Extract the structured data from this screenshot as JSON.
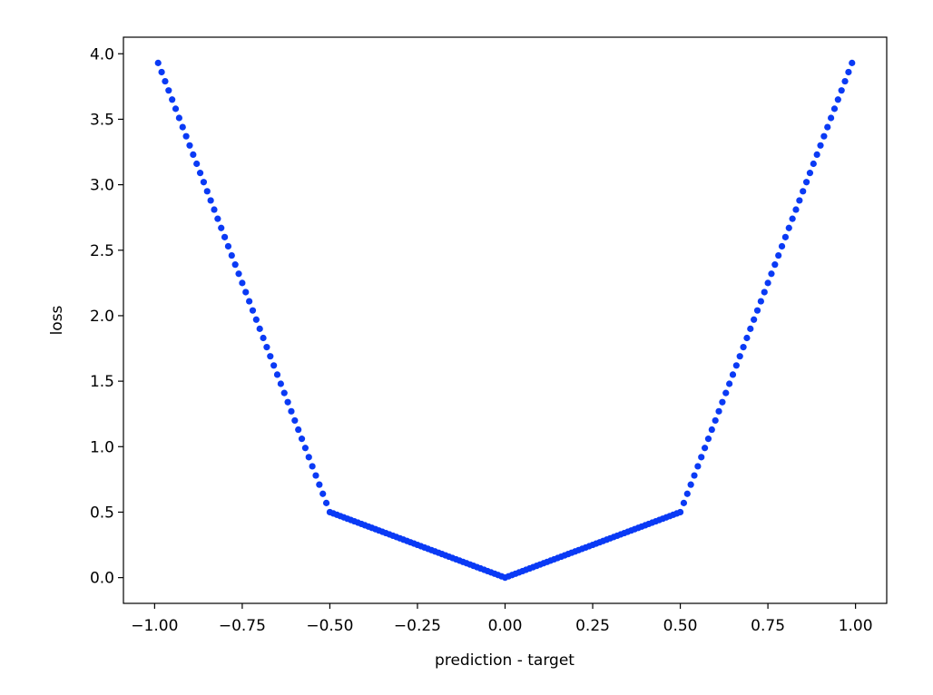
{
  "chart_data": {
    "type": "scatter",
    "xlabel": "prediction - target",
    "ylabel": "loss",
    "color": "#0a3af5",
    "x": [
      -0.99,
      -0.98,
      -0.97,
      -0.96,
      -0.95,
      -0.94,
      -0.93,
      -0.92,
      -0.91,
      -0.9,
      -0.89,
      -0.88,
      -0.87,
      -0.86,
      -0.85,
      -0.84,
      -0.83,
      -0.82,
      -0.81,
      -0.8,
      -0.79,
      -0.78,
      -0.77,
      -0.76,
      -0.75,
      -0.74,
      -0.73,
      -0.72,
      -0.71,
      -0.7,
      -0.69,
      -0.68,
      -0.67,
      -0.66,
      -0.65,
      -0.64,
      -0.63,
      -0.62,
      -0.61,
      -0.6,
      -0.59,
      -0.58,
      -0.57,
      -0.56,
      -0.55,
      -0.54,
      -0.53,
      -0.52,
      -0.51,
      -0.5,
      -0.49,
      -0.48,
      -0.47,
      -0.46,
      -0.45,
      -0.44,
      -0.43,
      -0.42,
      -0.41,
      -0.4,
      -0.39,
      -0.38,
      -0.37,
      -0.36,
      -0.35,
      -0.34,
      -0.33,
      -0.32,
      -0.31,
      -0.3,
      -0.29,
      -0.28,
      -0.27,
      -0.26,
      -0.25,
      -0.24,
      -0.23,
      -0.22,
      -0.21,
      -0.2,
      -0.19,
      -0.18,
      -0.17,
      -0.16,
      -0.15,
      -0.14,
      -0.13,
      -0.12,
      -0.11,
      -0.1,
      -0.09,
      -0.08,
      -0.07,
      -0.06,
      -0.05,
      -0.04,
      -0.03,
      -0.02,
      -0.01,
      0,
      0.01,
      0.02,
      0.03,
      0.04,
      0.05,
      0.06,
      0.07,
      0.08,
      0.09,
      0.1,
      0.11,
      0.12,
      0.13,
      0.14,
      0.15,
      0.16,
      0.17,
      0.18,
      0.19,
      0.2,
      0.21,
      0.22,
      0.23,
      0.24,
      0.25,
      0.26,
      0.27,
      0.28,
      0.29,
      0.3,
      0.31,
      0.32,
      0.33,
      0.34,
      0.35,
      0.36,
      0.37,
      0.38,
      0.39,
      0.4,
      0.41,
      0.42,
      0.43,
      0.44,
      0.45,
      0.46,
      0.47,
      0.48,
      0.49,
      0.5,
      0.51,
      0.52,
      0.53,
      0.54,
      0.55,
      0.56,
      0.57,
      0.58,
      0.59,
      0.6,
      0.61,
      0.62,
      0.63,
      0.64,
      0.65,
      0.66,
      0.67,
      0.68,
      0.69,
      0.7,
      0.71,
      0.72,
      0.73,
      0.74,
      0.75,
      0.76,
      0.77,
      0.78,
      0.79,
      0.8,
      0.81,
      0.82,
      0.83,
      0.84,
      0.85,
      0.86,
      0.87,
      0.88,
      0.89,
      0.9,
      0.91,
      0.92,
      0.93,
      0.94,
      0.95,
      0.96,
      0.97,
      0.98,
      0.99
    ],
    "values": [
      3.93,
      3.86,
      3.79,
      3.72,
      3.65,
      3.58,
      3.51,
      3.44,
      3.37,
      3.3,
      3.23,
      3.16,
      3.09,
      3.02,
      2.95,
      2.88,
      2.81,
      2.74,
      2.67,
      2.6,
      2.53,
      2.46,
      2.39,
      2.32,
      2.25,
      2.18,
      2.11,
      2.04,
      1.97,
      1.9,
      1.83,
      1.76,
      1.69,
      1.62,
      1.55,
      1.48,
      1.41,
      1.34,
      1.27,
      1.2,
      1.13,
      1.06,
      0.99,
      0.92,
      0.85,
      0.78,
      0.71,
      0.64,
      0.57,
      0.5,
      0.49,
      0.48,
      0.47,
      0.46,
      0.45,
      0.44,
      0.43,
      0.42,
      0.41,
      0.4,
      0.39,
      0.38,
      0.37,
      0.36,
      0.35,
      0.34,
      0.33,
      0.32,
      0.31,
      0.3,
      0.29,
      0.28,
      0.27,
      0.26,
      0.25,
      0.24,
      0.23,
      0.22,
      0.21,
      0.2,
      0.19,
      0.18,
      0.17,
      0.16,
      0.15,
      0.14,
      0.13,
      0.12,
      0.11,
      0.1,
      0.09,
      0.08,
      0.07,
      0.06,
      0.05,
      0.04,
      0.03,
      0.02,
      0.01,
      0,
      0.01,
      0.02,
      0.03,
      0.04,
      0.05,
      0.06,
      0.07,
      0.08,
      0.09,
      0.1,
      0.11,
      0.12,
      0.13,
      0.14,
      0.15,
      0.16,
      0.17,
      0.18,
      0.19,
      0.2,
      0.21,
      0.22,
      0.23,
      0.24,
      0.25,
      0.26,
      0.27,
      0.28,
      0.29,
      0.3,
      0.31,
      0.32,
      0.33,
      0.34,
      0.35,
      0.36,
      0.37,
      0.38,
      0.39,
      0.4,
      0.41,
      0.42,
      0.43,
      0.44,
      0.45,
      0.46,
      0.47,
      0.48,
      0.49,
      0.5,
      0.57,
      0.64,
      0.71,
      0.78,
      0.85,
      0.92,
      0.99,
      1.06,
      1.13,
      1.2,
      1.27,
      1.34,
      1.41,
      1.48,
      1.55,
      1.62,
      1.69,
      1.76,
      1.83,
      1.9,
      1.97,
      2.04,
      2.11,
      2.18,
      2.25,
      2.32,
      2.39,
      2.46,
      2.53,
      2.6,
      2.67,
      2.74,
      2.81,
      2.88,
      2.95,
      3.02,
      3.09,
      3.16,
      3.23,
      3.3,
      3.37,
      3.44,
      3.51,
      3.58,
      3.65,
      3.72,
      3.79,
      3.86,
      3.93
    ],
    "xlim": [
      -1.089,
      1.089
    ],
    "ylim": [
      -0.1965,
      4.1265
    ],
    "xticks": [
      {
        "value": -1,
        "label": "−1.00"
      },
      {
        "value": -0.75,
        "label": "−0.75"
      },
      {
        "value": -0.5,
        "label": "−0.50"
      },
      {
        "value": -0.25,
        "label": "−0.25"
      },
      {
        "value": 0,
        "label": "0.00"
      },
      {
        "value": 0.25,
        "label": "0.25"
      },
      {
        "value": 0.5,
        "label": "0.50"
      },
      {
        "value": 0.75,
        "label": "0.75"
      },
      {
        "value": 1,
        "label": "1.00"
      }
    ],
    "yticks": [
      {
        "value": 0,
        "label": "0.0"
      },
      0.5,
      {
        "value": 1,
        "label": "1.0"
      },
      1.5,
      {
        "value": 2,
        "label": "2.0"
      },
      2.5,
      {
        "value": 3,
        "label": "3.0"
      },
      3.5,
      {
        "value": 4,
        "label": "4.0"
      }
    ]
  }
}
